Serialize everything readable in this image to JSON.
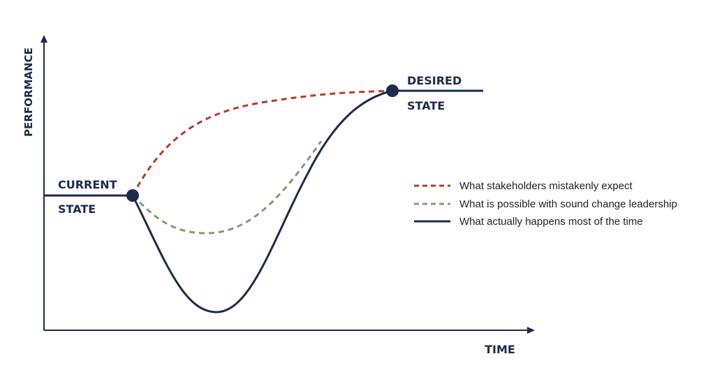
{
  "axes": {
    "y_label": "PERFORMANCE",
    "x_label": "TIME"
  },
  "states": {
    "current_line1": "CURRENT",
    "current_line2": "STATE",
    "desired_line1": "DESIRED",
    "desired_line2": "STATE"
  },
  "legend": {
    "items": [
      {
        "label": "What stakeholders mistakenly expect",
        "color": "#b83a2c",
        "style": "dashed"
      },
      {
        "label": "What is possible with sound change leadership",
        "color": "#859a74",
        "style": "dashed"
      },
      {
        "label": "What actually happens most of the time",
        "color": "#1e2a4a",
        "style": "solid"
      }
    ]
  },
  "colors": {
    "navy": "#1e2a4a",
    "red": "#b83a2c",
    "green": "#859a74"
  }
}
